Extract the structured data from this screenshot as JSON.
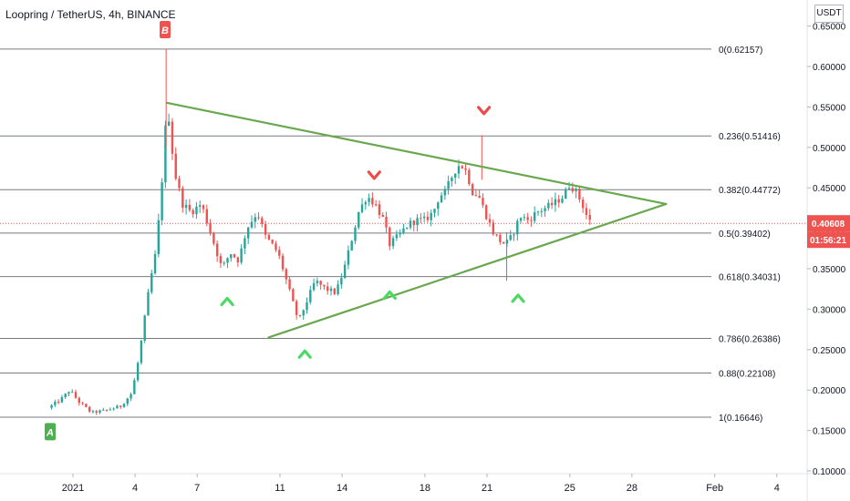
{
  "chart_data": {
    "type": "candlestick",
    "title": "Loopring / TetherUS, 4h, BINANCE",
    "unit": "USDT",
    "ylim": [
      0.1,
      0.64
    ],
    "y_ticks": [
      "0.10000",
      "0.15000",
      "0.20000",
      "0.25000",
      "0.30000",
      "0.35000",
      "0.40000",
      "0.45000",
      "0.50000",
      "0.55000",
      "0.60000",
      "0.65000"
    ],
    "x_ticks": [
      {
        "label": "2021",
        "day": 0
      },
      {
        "label": "4",
        "day": 3
      },
      {
        "label": "7",
        "day": 6
      },
      {
        "label": "11",
        "day": 10
      },
      {
        "label": "14",
        "day": 13
      },
      {
        "label": "18",
        "day": 17
      },
      {
        "label": "21",
        "day": 20
      },
      {
        "label": "25",
        "day": 24
      },
      {
        "label": "28",
        "day": 27
      },
      {
        "label": "Feb",
        "day": 31
      },
      {
        "label": "4",
        "day": 34
      }
    ],
    "current_price": {
      "label": "0.40608",
      "value": 0.40608,
      "countdown": "01:56:21"
    },
    "fib_levels": [
      {
        "label": "0(0.62157)",
        "value": 0.62157
      },
      {
        "label": "0.236(0.51416)",
        "value": 0.51416
      },
      {
        "label": "0.382(0.44772)",
        "value": 0.44772
      },
      {
        "label": "0.5(0.39402)",
        "value": 0.39402
      },
      {
        "label": "0.618(0.34031)",
        "value": 0.34031
      },
      {
        "label": "0.786(0.26386)",
        "value": 0.26386
      },
      {
        "label": "0.88(0.22108)",
        "value": 0.22108
      },
      {
        "label": "1(0.16646)",
        "value": 0.16646
      }
    ],
    "trendlines": [
      {
        "from": [
          4.55,
          0.555
        ],
        "to": [
          28.65,
          0.43
        ]
      },
      {
        "from": [
          9.45,
          0.265
        ],
        "to": [
          28.65,
          0.43
        ]
      }
    ],
    "markers": [
      {
        "label": "A",
        "day": -1.1,
        "value": 0.148,
        "color": "#4caf50"
      },
      {
        "label": "B",
        "day": 4.45,
        "value": 0.645,
        "color": "#ef5350"
      }
    ],
    "swing_arrows": [
      {
        "dir": "up",
        "day": 7.45,
        "value": 0.31
      },
      {
        "dir": "up",
        "day": 11.2,
        "value": 0.245
      },
      {
        "dir": "up",
        "day": 15.3,
        "value": 0.318
      },
      {
        "dir": "up",
        "day": 21.5,
        "value": 0.314
      },
      {
        "dir": "down",
        "day": 14.55,
        "value": 0.465
      },
      {
        "dir": "down",
        "day": 19.85,
        "value": 0.545
      }
    ],
    "price_path": [
      [
        -1.2,
        0.178
      ],
      [
        -0.6,
        0.188
      ],
      [
        -0.15,
        0.2
      ],
      [
        0.3,
        0.185
      ],
      [
        0.9,
        0.172
      ],
      [
        1.6,
        0.175
      ],
      [
        2.3,
        0.18
      ],
      [
        2.8,
        0.195
      ],
      [
        3.05,
        0.22
      ],
      [
        3.3,
        0.26
      ],
      [
        3.7,
        0.33
      ],
      [
        4.0,
        0.37
      ],
      [
        4.25,
        0.44
      ],
      [
        4.45,
        0.52
      ],
      [
        4.6,
        0.545
      ],
      [
        4.9,
        0.47
      ],
      [
        5.3,
        0.43
      ],
      [
        5.7,
        0.42
      ],
      [
        6.2,
        0.43
      ],
      [
        6.7,
        0.39
      ],
      [
        7.2,
        0.35
      ],
      [
        7.6,
        0.37
      ],
      [
        8.0,
        0.36
      ],
      [
        8.4,
        0.4
      ],
      [
        8.9,
        0.42
      ],
      [
        9.3,
        0.39
      ],
      [
        9.9,
        0.37
      ],
      [
        10.2,
        0.345
      ],
      [
        10.6,
        0.31
      ],
      [
        10.9,
        0.285
      ],
      [
        11.3,
        0.31
      ],
      [
        11.7,
        0.335
      ],
      [
        12.2,
        0.325
      ],
      [
        12.7,
        0.32
      ],
      [
        13.1,
        0.35
      ],
      [
        13.5,
        0.39
      ],
      [
        13.8,
        0.42
      ],
      [
        14.2,
        0.44
      ],
      [
        14.6,
        0.43
      ],
      [
        15.0,
        0.41
      ],
      [
        15.3,
        0.38
      ],
      [
        15.7,
        0.39
      ],
      [
        16.2,
        0.405
      ],
      [
        16.6,
        0.41
      ],
      [
        17.0,
        0.41
      ],
      [
        17.4,
        0.42
      ],
      [
        17.7,
        0.44
      ],
      [
        18.0,
        0.445
      ],
      [
        18.4,
        0.47
      ],
      [
        18.7,
        0.48
      ],
      [
        19.0,
        0.47
      ],
      [
        19.3,
        0.445
      ],
      [
        19.6,
        0.44
      ],
      [
        19.9,
        0.42
      ],
      [
        20.3,
        0.395
      ],
      [
        20.6,
        0.385
      ],
      [
        20.9,
        0.38
      ],
      [
        21.2,
        0.39
      ],
      [
        21.6,
        0.415
      ],
      [
        22.0,
        0.41
      ],
      [
        22.4,
        0.42
      ],
      [
        22.8,
        0.425
      ],
      [
        23.2,
        0.43
      ],
      [
        23.7,
        0.44
      ],
      [
        24.0,
        0.455
      ],
      [
        24.3,
        0.445
      ],
      [
        24.6,
        0.43
      ],
      [
        24.9,
        0.41
      ],
      [
        25.1,
        0.406
      ]
    ]
  }
}
